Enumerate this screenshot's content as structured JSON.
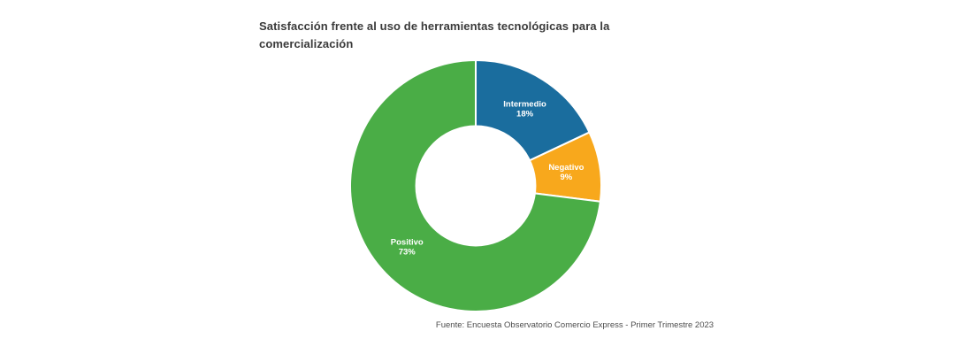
{
  "title": "Satisfacción frente al uso de herramientas tecnológicas para la comercialización",
  "source": "Fuente: Encuesta Observatorio Comercio Express - Primer Trimestre 2023",
  "colors": {
    "background": "#ffffff",
    "title_text": "#3a3a3a",
    "source_text": "#4d4d4d",
    "slice_separator": "#ffffff",
    "slice_label_text": "#ffffff"
  },
  "chart_data": {
    "type": "pie",
    "subtype": "donut",
    "title": "Satisfacción frente al uso de herramientas tecnológicas para la comercialización",
    "start_angle_deg": 0,
    "direction": "clockwise",
    "inner_radius_ratio": 0.475,
    "label_radius_ratio": 0.73,
    "legend": "none",
    "slices": [
      {
        "label": "Intermedio",
        "value": 18,
        "pct_label": "18%",
        "color": "#1a6d9e"
      },
      {
        "label": "Negativo",
        "value": 9,
        "pct_label": "9%",
        "color": "#f8a81c"
      },
      {
        "label": "Positivo",
        "value": 73,
        "pct_label": "73%",
        "color": "#4aad46"
      }
    ]
  }
}
